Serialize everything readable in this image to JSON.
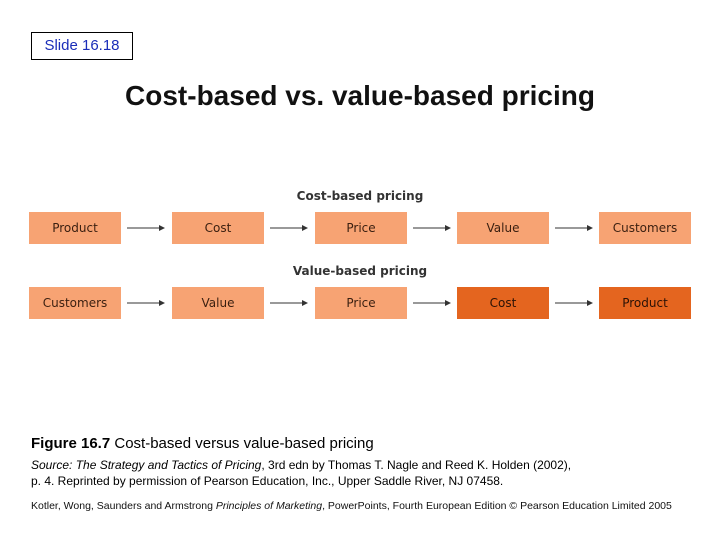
{
  "slide": {
    "number": "Slide 16.18",
    "title": "Cost-based vs. value-based pricing"
  },
  "diagram": {
    "cost_based": {
      "title": "Cost-based pricing",
      "steps": [
        "Product",
        "Cost",
        "Price",
        "Value",
        "Customers"
      ]
    },
    "value_based": {
      "title": "Value-based pricing",
      "steps": [
        "Customers",
        "Value",
        "Price",
        "Cost",
        "Product"
      ]
    },
    "colors": {
      "light": "#f7a373",
      "dark": "#e4651f"
    }
  },
  "figure": {
    "label": "Figure 16.7",
    "caption": "Cost-based versus value-based pricing",
    "source_prefix": "Source:",
    "source_title": "The Strategy and Tactics of Pricing",
    "source_rest_line1": ", 3rd edn by Thomas T. Nagle and Reed K. Holden (2002),",
    "source_line2": "p. 4. Reprinted by permission of Pearson Education, Inc., Upper Saddle River, NJ 07458."
  },
  "footer": {
    "authors": "Kotler, Wong, Saunders and Armstrong",
    "book_title": "Principles of Marketing",
    "rest": ", PowerPoints, Fourth European Edition © Pearson Education Limited 2005"
  }
}
